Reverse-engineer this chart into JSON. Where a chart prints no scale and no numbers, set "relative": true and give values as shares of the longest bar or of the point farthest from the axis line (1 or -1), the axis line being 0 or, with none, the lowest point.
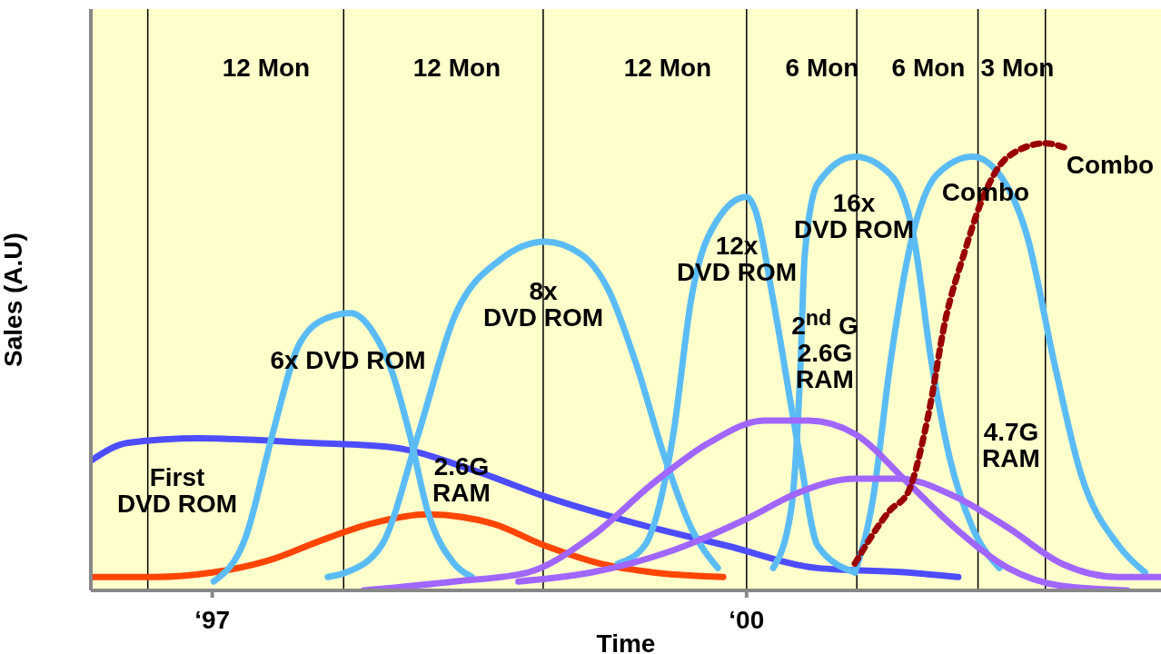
{
  "chart_data": {
    "type": "line",
    "relative": true,
    "xlabel": "Time",
    "ylabel": "Sales (A.U)",
    "xlim": [
      "1996-04-26",
      "2002-04-29"
    ],
    "xticks": [
      {
        "value": "1997",
        "label": "‘97"
      },
      {
        "value": "2000",
        "label": "‘00"
      }
    ],
    "series": [
      {
        "color": "#4d4dff",
        "x": [
          "1996-04-26",
          "1996-07-11",
          "1996-12-05",
          "1997-07-19",
          "1998-01-04",
          "1998-06-16",
          "1998-11-14",
          "1999-05-17",
          "1999-11-21",
          "2000-05-25",
          "2000-11-28",
          "2001-03-09"
        ],
        "values": [
          0.29,
          0.33,
          0.34,
          0.33,
          0.32,
          0.27,
          0.21,
          0.15,
          0.1,
          0.05,
          0.04,
          0.03
        ]
      },
      {
        "color": "#ff4500",
        "x": [
          "1996-04-26",
          "1996-09-05",
          "1997-01-01",
          "1997-05-03",
          "1997-08-07",
          "1997-11-25",
          "1998-03-16",
          "1998-07-26",
          "1998-11-14",
          "1999-03-05",
          "1999-06-23",
          "1999-11-14"
        ],
        "values": [
          0.03,
          0.03,
          0.04,
          0.07,
          0.11,
          0.15,
          0.17,
          0.15,
          0.1,
          0.06,
          0.04,
          0.03
        ]
      },
      {
        "color": "#5bbcf5",
        "x": [
          "1997-01-04",
          "1997-03-09",
          "1997-05-03",
          "1997-06-27",
          "1997-08-25",
          "1997-10-11",
          "1997-11-25",
          "1998-01-04",
          "1998-02-10",
          "1998-03-16",
          "1998-05-10",
          "1998-06-16"
        ],
        "values": [
          0.02,
          0.12,
          0.35,
          0.55,
          0.61,
          0.62,
          0.58,
          0.49,
          0.35,
          0.18,
          0.06,
          0.03
        ]
      },
      {
        "color": "#5bbcf5",
        "x": [
          "1997-08-25",
          "1997-10-01",
          "1997-12-13",
          "1998-02-28",
          "1998-05-10",
          "1998-08-14",
          "1998-11-14",
          "1999-01-29",
          "1999-03-23",
          "1999-05-17",
          "1999-07-15",
          "1999-09-09",
          "1999-11-03"
        ],
        "values": [
          0.03,
          0.04,
          0.1,
          0.35,
          0.61,
          0.74,
          0.78,
          0.75,
          0.67,
          0.51,
          0.3,
          0.14,
          0.05
        ]
      },
      {
        "color": "#5bbcf5",
        "x": [
          "1999-04-11",
          "1999-06-05",
          "1999-08-03",
          "1999-09-09",
          "1999-11-03",
          "2000-01-01",
          "2000-01-19",
          "2000-02-25",
          "2000-04-19",
          "2000-05-25",
          "2000-08-10"
        ],
        "values": [
          0.06,
          0.1,
          0.35,
          0.65,
          0.83,
          0.88,
          0.85,
          0.65,
          0.3,
          0.1,
          0.04
        ]
      },
      {
        "color": "#5bbcf5",
        "x": [
          "2000-02-25",
          "2000-04-01",
          "2000-04-19",
          "2000-04-29",
          "2000-05-25",
          "2000-08-10",
          "2000-10-22",
          "2000-12-09",
          "2001-01-15",
          "2001-02-21",
          "2001-04-08",
          "2001-06-02"
        ],
        "values": [
          0.05,
          0.18,
          0.47,
          0.75,
          0.91,
          0.97,
          0.93,
          0.79,
          0.51,
          0.3,
          0.14,
          0.05
        ]
      },
      {
        "color": "#5bbcf5",
        "x": [
          "2000-08-10",
          "2000-09-16",
          "2000-10-22",
          "2000-11-28",
          "2001-01-26",
          "2001-04-08",
          "2001-06-02",
          "2001-07-29",
          "2001-09-23",
          "2001-11-17",
          "2002-02-03",
          "2002-03-27"
        ],
        "values": [
          0.04,
          0.2,
          0.51,
          0.75,
          0.93,
          0.97,
          0.93,
          0.79,
          0.51,
          0.26,
          0.1,
          0.04
        ]
      },
      {
        "color": "#a066ff",
        "x": [
          "1997-11-07",
          "1998-05-10",
          "1998-10-08",
          "1999-02-17",
          "1999-06-23",
          "1999-10-15",
          "2000-02-07",
          "2000-05-07",
          "2000-08-10",
          "2000-11-28",
          "2001-03-02",
          "2001-06-20",
          "2001-10-08",
          "2002-02-21"
        ],
        "values": [
          0.0,
          0.02,
          0.04,
          0.12,
          0.24,
          0.33,
          0.38,
          0.38,
          0.35,
          0.24,
          0.14,
          0.05,
          0.01,
          0.0
        ]
      },
      {
        "color": "#a066ff",
        "x": [
          "1998-09-20",
          "1999-02-17",
          "1999-08-03",
          "2000-01-01",
          "2000-04-19",
          "2000-08-10",
          "2000-11-10",
          "2001-03-02",
          "2001-06-20",
          "2001-10-08",
          "2002-02-03",
          "2002-04-29"
        ],
        "values": [
          0.02,
          0.04,
          0.09,
          0.16,
          0.22,
          0.25,
          0.25,
          0.21,
          0.14,
          0.06,
          0.03,
          0.03
        ]
      },
      {
        "color": "#990000",
        "line_style": "dotted",
        "x": [
          "2000-08-10",
          "2000-10-22",
          "2000-11-28",
          "2001-01-08",
          "2001-02-14",
          "2001-03-20",
          "2001-04-26",
          "2001-06-20",
          "2001-09-05",
          "2001-10-15"
        ],
        "values": [
          0.06,
          0.18,
          0.22,
          0.39,
          0.61,
          0.75,
          0.87,
          0.97,
          1.0,
          0.99
        ]
      }
    ],
    "ref_lines": [
      {
        "axis": "x",
        "value": "1996-08-21",
        "label": null
      },
      {
        "axis": "x",
        "value": "1997-09-27",
        "label": null
      },
      {
        "axis": "x",
        "value": "1998-11-10",
        "label": null
      },
      {
        "axis": "x",
        "value": "2000-01-01",
        "label": null
      },
      {
        "axis": "x",
        "value": "2000-08-14",
        "label": null
      },
      {
        "axis": "x",
        "value": "2001-04-19",
        "label": null
      },
      {
        "axis": "x",
        "value": "2001-09-05",
        "label": null
      }
    ],
    "annotations": [
      "12 Mon",
      "12 Mon",
      "12 Mon",
      "6 Mon",
      "6 Mon",
      "3 Mon",
      "First\nDVD ROM",
      "6x DVD ROM",
      "8x\nDVD ROM",
      "12x\nDVD ROM",
      "16x\nDVD ROM",
      "2$^{nd}$ G\n2.6G\nRAM",
      "2.6G\nRAM",
      "4.7G\nRAM",
      "Combo",
      "Combo"
    ]
  }
}
